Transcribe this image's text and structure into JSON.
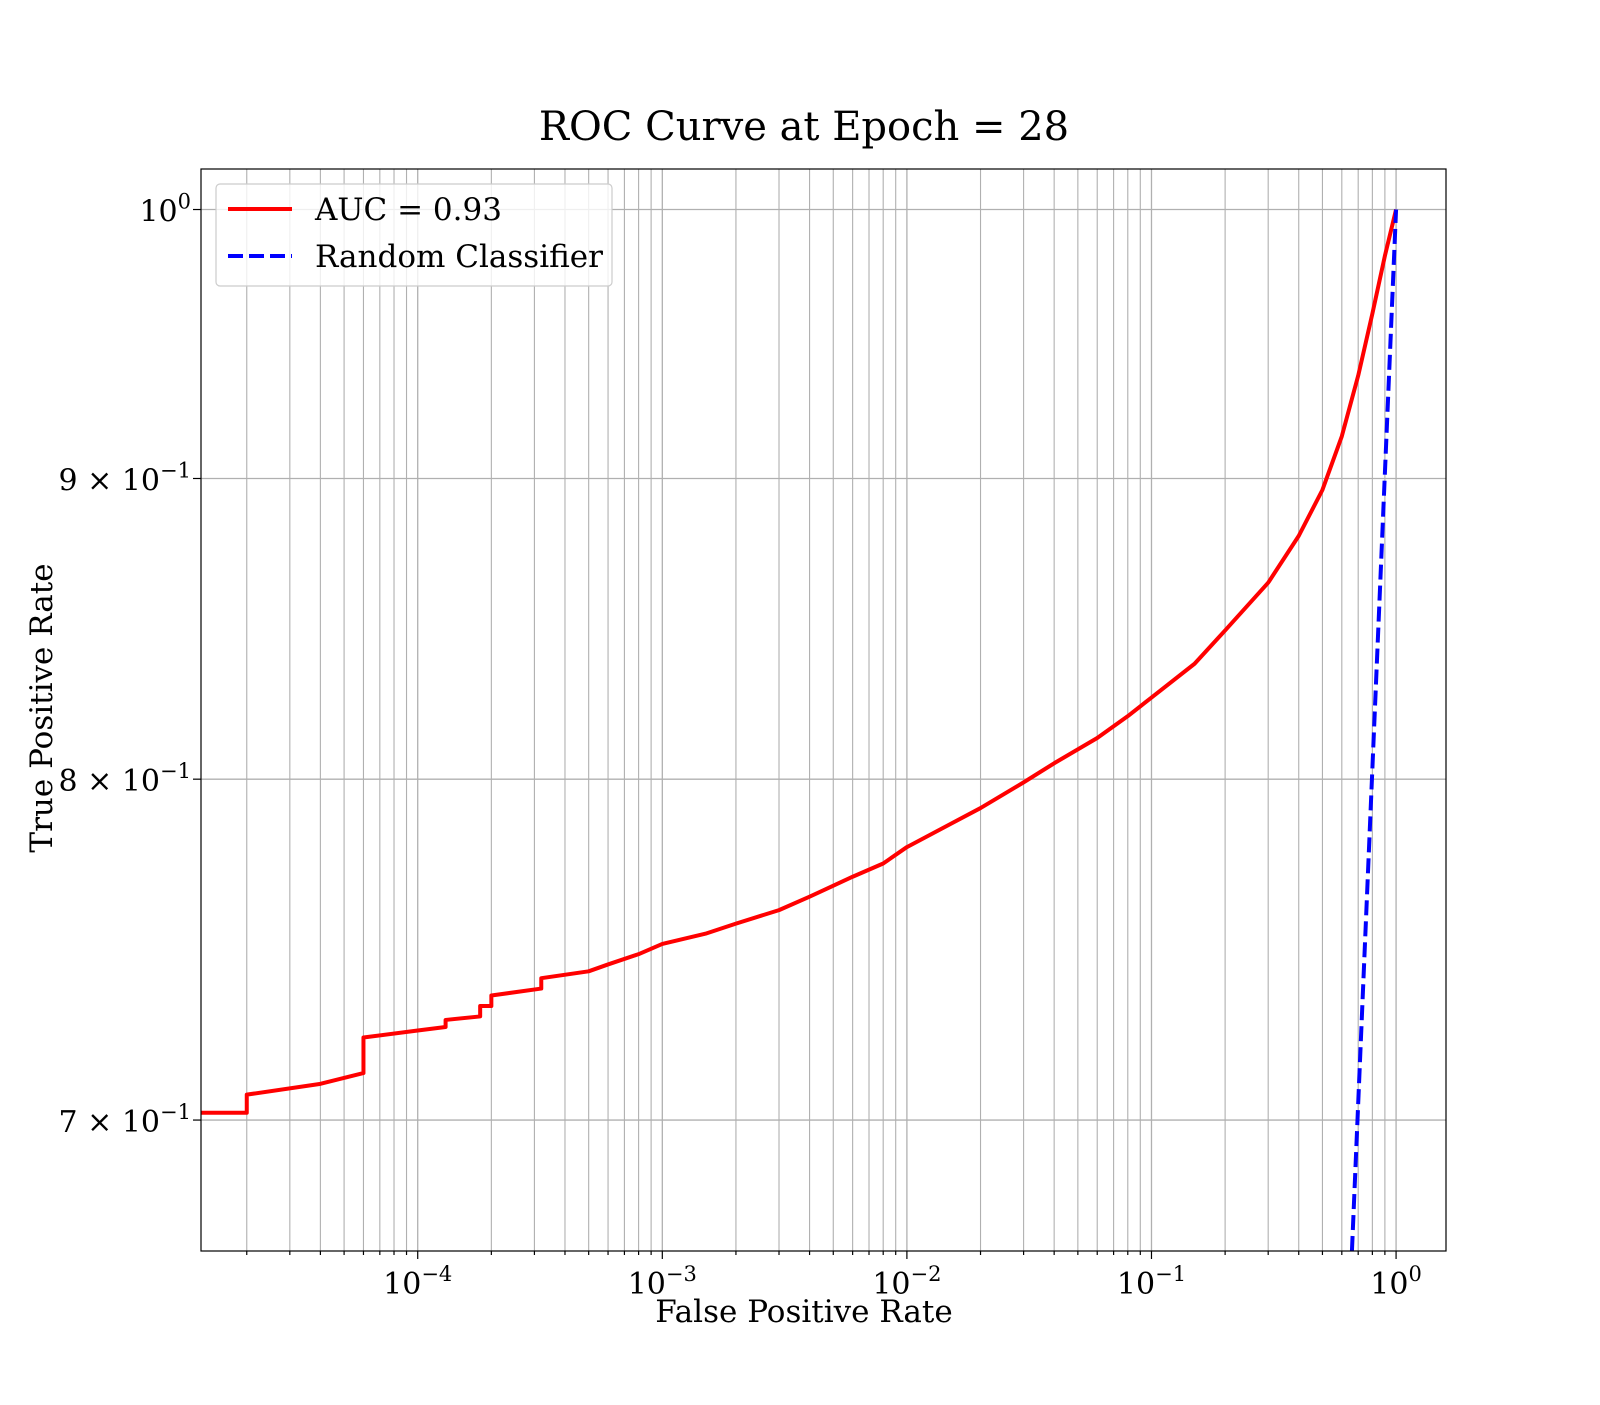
{
  "chart_data": {
    "type": "line",
    "title": "ROC Curve at Epoch = 28",
    "xlabel": "False Positive Rate",
    "ylabel": "True Positive Rate",
    "xscale": "log",
    "yscale": "log",
    "xlim": [
      1.3e-05,
      1.6
    ],
    "ylim": [
      0.665,
      1.016
    ],
    "grid": true,
    "legend_position": "top-left",
    "x_ticks": [
      {
        "value": 0.0001,
        "base": "10",
        "exp": "−4"
      },
      {
        "value": 0.001,
        "base": "10",
        "exp": "−3"
      },
      {
        "value": 0.01,
        "base": "10",
        "exp": "−2"
      },
      {
        "value": 0.1,
        "base": "10",
        "exp": "−1"
      },
      {
        "value": 1,
        "base": "10",
        "exp": "0"
      }
    ],
    "y_ticks": [
      {
        "value": 0.7,
        "base": "7 × 10",
        "exp": "−1"
      },
      {
        "value": 0.8,
        "base": "8 × 10",
        "exp": "−1"
      },
      {
        "value": 0.9,
        "base": "9 × 10",
        "exp": "−1"
      },
      {
        "value": 1.0,
        "base": "10",
        "exp": "0"
      }
    ],
    "series": [
      {
        "name": "AUC = 0.93",
        "color": "#ff0000",
        "style": "solid",
        "points": [
          [
            1.3e-05,
            0.702
          ],
          [
            2e-05,
            0.702
          ],
          [
            2e-05,
            0.707
          ],
          [
            4e-05,
            0.71
          ],
          [
            6e-05,
            0.713
          ],
          [
            6e-05,
            0.723
          ],
          [
            0.0001,
            0.725
          ],
          [
            0.00013,
            0.726
          ],
          [
            0.00013,
            0.728
          ],
          [
            0.00018,
            0.729
          ],
          [
            0.00018,
            0.732
          ],
          [
            0.0002,
            0.732
          ],
          [
            0.0002,
            0.735
          ],
          [
            0.00032,
            0.737
          ],
          [
            0.00032,
            0.74
          ],
          [
            0.0005,
            0.742
          ],
          [
            0.0006,
            0.744
          ],
          [
            0.0008,
            0.747
          ],
          [
            0.001,
            0.75
          ],
          [
            0.0015,
            0.753
          ],
          [
            0.002,
            0.756
          ],
          [
            0.003,
            0.76
          ],
          [
            0.004,
            0.764
          ],
          [
            0.006,
            0.77
          ],
          [
            0.008,
            0.774
          ],
          [
            0.01,
            0.779
          ],
          [
            0.015,
            0.786
          ],
          [
            0.02,
            0.791
          ],
          [
            0.03,
            0.799
          ],
          [
            0.04,
            0.805
          ],
          [
            0.06,
            0.813
          ],
          [
            0.08,
            0.82
          ],
          [
            0.1,
            0.826
          ],
          [
            0.15,
            0.837
          ],
          [
            0.2,
            0.848
          ],
          [
            0.3,
            0.864
          ],
          [
            0.4,
            0.88
          ],
          [
            0.5,
            0.896
          ],
          [
            0.6,
            0.915
          ],
          [
            0.7,
            0.937
          ],
          [
            0.8,
            0.96
          ],
          [
            0.9,
            0.982
          ],
          [
            1.0,
            1.0
          ]
        ]
      },
      {
        "name": "Random Classifier",
        "color": "#0000ff",
        "style": "dashed",
        "points": [
          [
            0.66,
            0.665
          ],
          [
            1.0,
            1.0
          ]
        ]
      }
    ]
  }
}
